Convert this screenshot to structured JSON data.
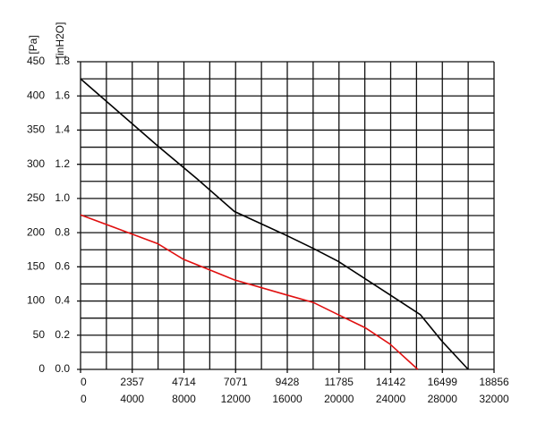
{
  "chart_data": {
    "type": "line",
    "y_label": "[Pa]",
    "y2_label": "[inH2O]",
    "xlim": [
      0,
      32000
    ],
    "xticks": [
      0,
      4000,
      8000,
      12000,
      16000,
      20000,
      24000,
      28000,
      32000
    ],
    "x2lim": [
      0,
      18856
    ],
    "x2ticks": [
      0,
      2357,
      4714,
      7071,
      9428,
      11785,
      14142,
      16499,
      18856
    ],
    "ylim": [
      0,
      450
    ],
    "yticks": [
      0,
      50,
      100,
      150,
      200,
      250,
      300,
      350,
      400,
      450
    ],
    "y2lim": [
      0,
      1.8
    ],
    "y2ticks": [
      {
        "value": 0,
        "label": "0.0"
      },
      0.2,
      0.4,
      0.6,
      0.8,
      {
        "value": 1,
        "label": "1.0"
      },
      1.2,
      1.4,
      1.6,
      1.8
    ],
    "grid": true,
    "series": [
      {
        "color": "#000000",
        "x": [
          0,
          5960,
          9000,
          11900,
          15930,
          18000,
          19940,
          23950,
          26300,
          27980,
          30000
        ],
        "values": [
          425,
          327,
          279,
          231,
          196,
          177,
          158,
          109,
          80,
          41,
          0
        ]
      },
      {
        "color": "#e01010",
        "x": [
          0,
          5960,
          7960,
          11900,
          15930,
          18000,
          19940,
          22020,
          23950,
          26100
        ],
        "values": [
          226,
          184,
          161,
          131,
          109,
          98,
          80,
          61,
          37,
          0
        ]
      }
    ]
  }
}
